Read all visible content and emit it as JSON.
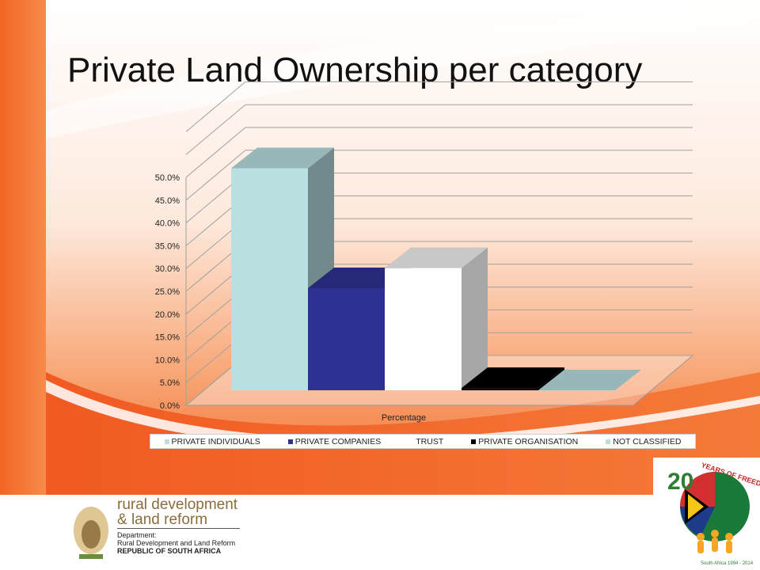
{
  "slide": {
    "title": "Private Land Ownership per category"
  },
  "chart_data": {
    "type": "bar",
    "variant": "3d-clustered",
    "categories": [
      "Percentage"
    ],
    "xlabel": "Percentage",
    "ylabel": "",
    "ylim": [
      0,
      0.5
    ],
    "yticks": [
      "0.0%",
      "5.0%",
      "10.0%",
      "15.0%",
      "20.0%",
      "25.0%",
      "30.0%",
      "35.0%",
      "40.0%",
      "45.0%",
      "50.0%"
    ],
    "grid": true,
    "legend_position": "bottom",
    "series": [
      {
        "name": "PRIVATE INDIVIDUALS",
        "values": [
          0.487
        ],
        "color": "#b9dfe1"
      },
      {
        "name": "PRIVATE COMPANIES",
        "values": [
          0.224
        ],
        "color": "#2e3192"
      },
      {
        "name": "TRUST",
        "values": [
          0.268
        ],
        "color": "#ffffff"
      },
      {
        "name": "PRIVATE ORGANISATION",
        "values": [
          0.005
        ],
        "color": "#000000"
      },
      {
        "name": "NOT CLASSIFIED",
        "values": [
          0.0
        ],
        "color": "#b9dfe1"
      }
    ]
  },
  "footer": {
    "department_name_line1": "rural development",
    "department_name_line2": "& land reform",
    "department_label": "Department:",
    "department_full": "Rural Development and Land Reform",
    "country": "REPUBLIC OF SOUTH AFRICA",
    "anniversary_logo_text": "20 YEARS OF FREEDOM",
    "anniversary_sub": "South Africa 1994 - 2014"
  },
  "colors": {
    "accent_orange": "#f05a22",
    "accent_light": "#fbd9c0",
    "brand_gold": "#8a6d3b"
  }
}
